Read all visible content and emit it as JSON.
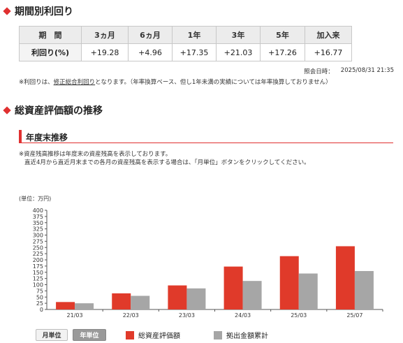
{
  "section1": {
    "title": "期間別利回り"
  },
  "returns_table": {
    "headers": [
      "期　間",
      "3ヵ月",
      "6ヵ月",
      "1年",
      "3年",
      "5年",
      "加入来"
    ],
    "row_label": "利回り(%)",
    "values": [
      "+19.28",
      "+4.96",
      "+17.35",
      "+21.03",
      "+17.26",
      "+16.77"
    ]
  },
  "as_of": {
    "label": "照会日時：",
    "value": "2025/08/31 21:35"
  },
  "note1": {
    "prefix": "※利回りは、",
    "link": "修正総合利回り",
    "suffix": "となります。（年率換算ベース、但し1年未満の実績については年率換算しておりません）"
  },
  "section2": {
    "title": "総資産評価額の推移"
  },
  "subsection": {
    "title": "年度末推移"
  },
  "note2": {
    "line1": "※資産残高推移は年度末の資産残高を表示しております。",
    "line2": "直近4月から直近月末までの各月の資産残高を表示する場合は、「月単位」ボタンをクリックしてください。"
  },
  "colors": {
    "accent": "#e03030",
    "series1": "#e03a2a",
    "series2": "#a6a6a6"
  },
  "chart_data": {
    "type": "bar",
    "unit_label": "(単位：万円)",
    "categories": [
      "21/03",
      "22/03",
      "23/03",
      "24/03",
      "25/03",
      "25/07"
    ],
    "series": [
      {
        "name": "総資産評価額",
        "values": [
          30,
          65,
          97,
          173,
          215,
          255
        ]
      },
      {
        "name": "拠出金額累計",
        "values": [
          25,
          55,
          85,
          115,
          145,
          155
        ]
      }
    ],
    "yticks": [
      0,
      25,
      50,
      75,
      100,
      125,
      150,
      175,
      200,
      225,
      250,
      275,
      300,
      325,
      350,
      375,
      400
    ],
    "ylim": [
      0,
      400
    ],
    "grid": false,
    "legend_position": "bottom"
  },
  "buttons": {
    "monthly": "月単位",
    "yearly": "年単位"
  }
}
